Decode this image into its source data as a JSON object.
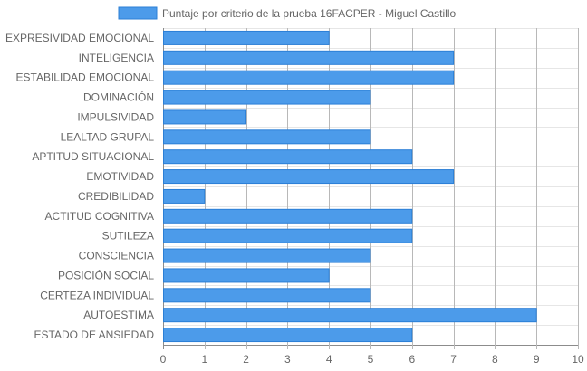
{
  "chart_data": {
    "type": "bar",
    "orientation": "horizontal",
    "categories": [
      "EXPRESIVIDAD EMOCIONAL",
      "INTELIGENCIA",
      "ESTABILIDAD EMOCIONAL",
      "DOMINACIÓN",
      "IMPULSIVIDAD",
      "LEALTAD GRUPAL",
      "APTITUD SITUACIONAL",
      "EMOTIVIDAD",
      "CREDIBILIDAD",
      "ACTITUD COGNITIVA",
      "SUTILEZA",
      "CONSCIENCIA",
      "POSICIÓN SOCIAL",
      "CERTEZA INDIVIDUAL",
      "AUTOESTIMA",
      "ESTADO DE ANSIEDAD"
    ],
    "series": [
      {
        "name": "Puntaje por criterio de la prueba 16FACPER - Miguel Castillo",
        "values": [
          4,
          7,
          7,
          5,
          2,
          5,
          6,
          7,
          1,
          6,
          6,
          5,
          4,
          5,
          9,
          6
        ],
        "color": "#4c9bea",
        "border_color": "#2b7fd6"
      }
    ],
    "xlim": [
      0,
      10
    ],
    "x_ticks": [
      "0",
      "1",
      "2",
      "3",
      "4",
      "5",
      "6",
      "7",
      "8",
      "9",
      "10"
    ],
    "grid": true,
    "legend_position": "top"
  }
}
